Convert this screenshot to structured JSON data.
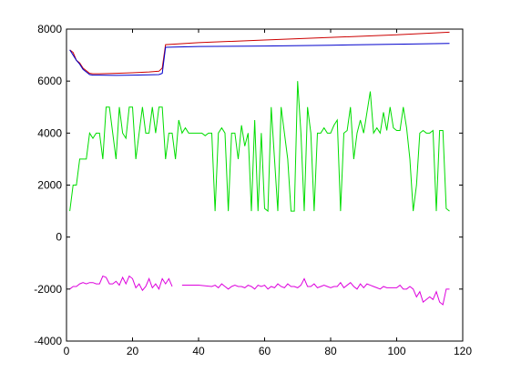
{
  "chart_data": {
    "type": "line",
    "title": "",
    "xlabel": "",
    "ylabel": "",
    "xlim": [
      0,
      120
    ],
    "ylim": [
      -4000,
      8000
    ],
    "xticks": [
      0,
      20,
      40,
      60,
      80,
      100,
      120
    ],
    "yticks": [
      -4000,
      -2000,
      0,
      2000,
      4000,
      6000,
      8000
    ],
    "xtick_labels": [
      "0",
      "20",
      "40",
      "60",
      "80",
      "100",
      "120"
    ],
    "ytick_labels": [
      "-4000",
      "-2000",
      "0",
      "2000",
      "4000",
      "6000",
      "8000"
    ],
    "grid": false,
    "legend": "none",
    "series": [
      {
        "color": "#cc0000",
        "x": [
          1,
          2,
          3,
          4,
          5,
          6,
          7,
          8,
          10,
          15,
          20,
          25,
          28,
          29,
          30,
          40,
          60,
          80,
          100,
          116
        ],
        "y": [
          7200,
          7100,
          6800,
          6700,
          6500,
          6400,
          6300,
          6280,
          6280,
          6300,
          6320,
          6350,
          6380,
          6500,
          7400,
          7480,
          7580,
          7680,
          7780,
          7880
        ]
      },
      {
        "color": "#0000cc",
        "x": [
          1,
          2,
          3,
          4,
          5,
          6,
          7,
          8,
          10,
          15,
          20,
          25,
          28,
          29,
          30,
          40,
          60,
          80,
          100,
          116
        ],
        "y": [
          7200,
          7000,
          6800,
          6650,
          6450,
          6350,
          6250,
          6230,
          6230,
          6220,
          6230,
          6240,
          6250,
          6300,
          7300,
          7330,
          7350,
          7380,
          7420,
          7450
        ]
      },
      {
        "color": "#00dd00",
        "x": [
          1,
          2,
          3,
          4,
          5,
          6,
          7,
          8,
          9,
          10,
          11,
          12,
          13,
          14,
          15,
          16,
          17,
          18,
          19,
          20,
          21,
          22,
          23,
          24,
          25,
          26,
          27,
          28,
          29,
          30,
          31,
          32,
          33,
          34,
          35,
          36,
          37,
          38,
          39,
          40,
          41,
          42,
          43,
          44,
          45,
          46,
          47,
          48,
          49,
          50,
          51,
          52,
          53,
          54,
          55,
          56,
          57,
          58,
          59,
          60,
          61,
          62,
          63,
          64,
          65,
          66,
          67,
          68,
          69,
          70,
          71,
          72,
          73,
          74,
          75,
          76,
          77,
          78,
          79,
          80,
          81,
          82,
          83,
          84,
          85,
          86,
          87,
          88,
          89,
          90,
          91,
          92,
          93,
          94,
          95,
          96,
          97,
          98,
          99,
          100,
          101,
          102,
          103,
          104,
          105,
          106,
          107,
          108,
          109,
          110,
          111,
          112,
          113,
          114,
          115,
          116
        ],
        "y": [
          1000,
          2000,
          2000,
          3000,
          3000,
          3000,
          4000,
          3800,
          4000,
          4000,
          3000,
          5000,
          5000,
          4000,
          3000,
          5000,
          4000,
          3800,
          5000,
          5000,
          3000,
          4000,
          5000,
          4000,
          4000,
          5000,
          4000,
          5000,
          5000,
          3000,
          4000,
          4000,
          3000,
          4500,
          4000,
          4200,
          4000,
          4000,
          4000,
          4000,
          4000,
          3900,
          4000,
          4000,
          1000,
          4000,
          4200,
          4000,
          1000,
          4000,
          4000,
          3000,
          4300,
          3500,
          4000,
          1000,
          4500,
          1000,
          4000,
          1100,
          1000,
          5000,
          3000,
          1000,
          5000,
          4000,
          3000,
          1000,
          1000,
          6000,
          4000,
          1000,
          5000,
          4000,
          1000,
          4000,
          4000,
          4200,
          4000,
          4000,
          4300,
          4500,
          1000,
          4000,
          4100,
          5000,
          3000,
          4000,
          4500,
          4000,
          4800,
          5600,
          4000,
          4200,
          4000,
          4800,
          4100,
          5000,
          4200,
          4100,
          4100,
          5000,
          4200,
          3000,
          1000,
          2000,
          4000,
          4100,
          4000,
          4000,
          4100,
          1000,
          4100,
          4100,
          1100,
          1000
        ]
      },
      {
        "color": "#dd00dd",
        "segments": [
          {
            "x": [
              1,
              2,
              3,
              4,
              5,
              6,
              7,
              8,
              9,
              10,
              11,
              12,
              13,
              14,
              15,
              16,
              17,
              18,
              19,
              20,
              21,
              22,
              23,
              24,
              25,
              26,
              27,
              28,
              29,
              30,
              31,
              32
            ],
            "y": [
              -2000,
              -1900,
              -1900,
              -1800,
              -1750,
              -1800,
              -1750,
              -1750,
              -1800,
              -1800,
              -1500,
              -1550,
              -1800,
              -1800,
              -1700,
              -1850,
              -1550,
              -1800,
              -1500,
              -1600,
              -1950,
              -1800,
              -2050,
              -1900,
              -1600,
              -1950,
              -1800,
              -2000,
              -1600,
              -1800,
              -1600,
              -1900
            ]
          },
          {
            "x": [
              35,
              40,
              44,
              45,
              46,
              47,
              48,
              49,
              50,
              51,
              52,
              53,
              54,
              55,
              56,
              57,
              58,
              59,
              60,
              61,
              62,
              63,
              64,
              65,
              66,
              67,
              68,
              69,
              70,
              71,
              72,
              73,
              74,
              75,
              76,
              77,
              78,
              79,
              80,
              81,
              82,
              83,
              84,
              85,
              86,
              87,
              88,
              89,
              90,
              91,
              92,
              93,
              94,
              95,
              96,
              97,
              98,
              99,
              100,
              101,
              102,
              103,
              104,
              105,
              106,
              107,
              108,
              109,
              110,
              111,
              112,
              113,
              114,
              115,
              116
            ],
            "y": [
              -1850,
              -1850,
              -1900,
              -1850,
              -1950,
              -1800,
              -1900,
              -2000,
              -1900,
              -1850,
              -1900,
              -1900,
              -1950,
              -1850,
              -1900,
              -2000,
              -1850,
              -1900,
              -1850,
              -2000,
              -1900,
              -1950,
              -1800,
              -1900,
              -1950,
              -1800,
              -1900,
              -1900,
              -1950,
              -1850,
              -1600,
              -1900,
              -1900,
              -1800,
              -1950,
              -1900,
              -1850,
              -1900,
              -1950,
              -1900,
              -1900,
              -1750,
              -1950,
              -1850,
              -1750,
              -1900,
              -2000,
              -1800,
              -1950,
              -1800,
              -1850,
              -1900,
              -1950,
              -2000,
              -1900,
              -1950,
              -1950,
              -1950,
              -1950,
              -1850,
              -2000,
              -2000,
              -1900,
              -2000,
              -2300,
              -2100,
              -2500,
              -2400,
              -2300,
              -2400,
              -2100,
              -2500,
              -2600,
              -2000,
              -2000
            ]
          }
        ]
      }
    ]
  }
}
